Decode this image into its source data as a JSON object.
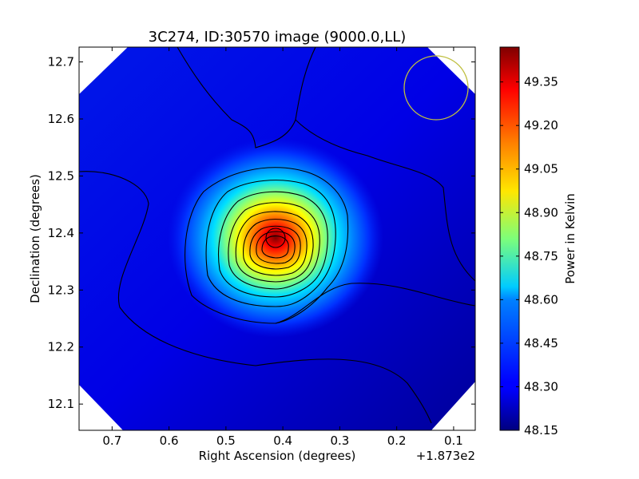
{
  "chart_data": {
    "type": "heatmap",
    "title": "3C274, ID:30570 image (9000.0,LL)",
    "xlabel": "Right Ascension (degrees)",
    "ylabel": "Declination (degrees)",
    "x_offset_label": "+1.873e2",
    "x_ticks": [
      0.7,
      0.6,
      0.5,
      0.4,
      0.3,
      0.2,
      0.1
    ],
    "x_tick_labels": [
      "0.7",
      "0.6",
      "0.5",
      "0.4",
      "0.3",
      "0.2",
      "0.1"
    ],
    "xlim": [
      0.758,
      0.062
    ],
    "y_ticks": [
      12.1,
      12.2,
      12.3,
      12.4,
      12.5,
      12.6,
      12.7
    ],
    "y_tick_labels": [
      "12.1",
      "12.2",
      "12.3",
      "12.4",
      "12.5",
      "12.6",
      "12.7"
    ],
    "ylim": [
      12.054,
      12.726
    ],
    "colorbar": {
      "label": "Power in Kelvin",
      "colormap": "jet",
      "range": [
        48.15,
        49.47
      ],
      "ticks": [
        48.15,
        48.3,
        48.45,
        48.6,
        48.75,
        48.9,
        49.05,
        49.2,
        49.35
      ],
      "tick_labels": [
        "48.15",
        "48.30",
        "48.45",
        "48.60",
        "48.75",
        "48.90",
        "49.05",
        "49.20",
        "49.35"
      ]
    },
    "source_peak": {
      "ra": 0.414,
      "dec": 12.39,
      "value": 49.45
    },
    "beam_circle": {
      "ra": 0.134,
      "dec": 12.652,
      "color": "#bfbf3f"
    },
    "background_level": 48.28,
    "contours": "black, about 13 levels"
  }
}
